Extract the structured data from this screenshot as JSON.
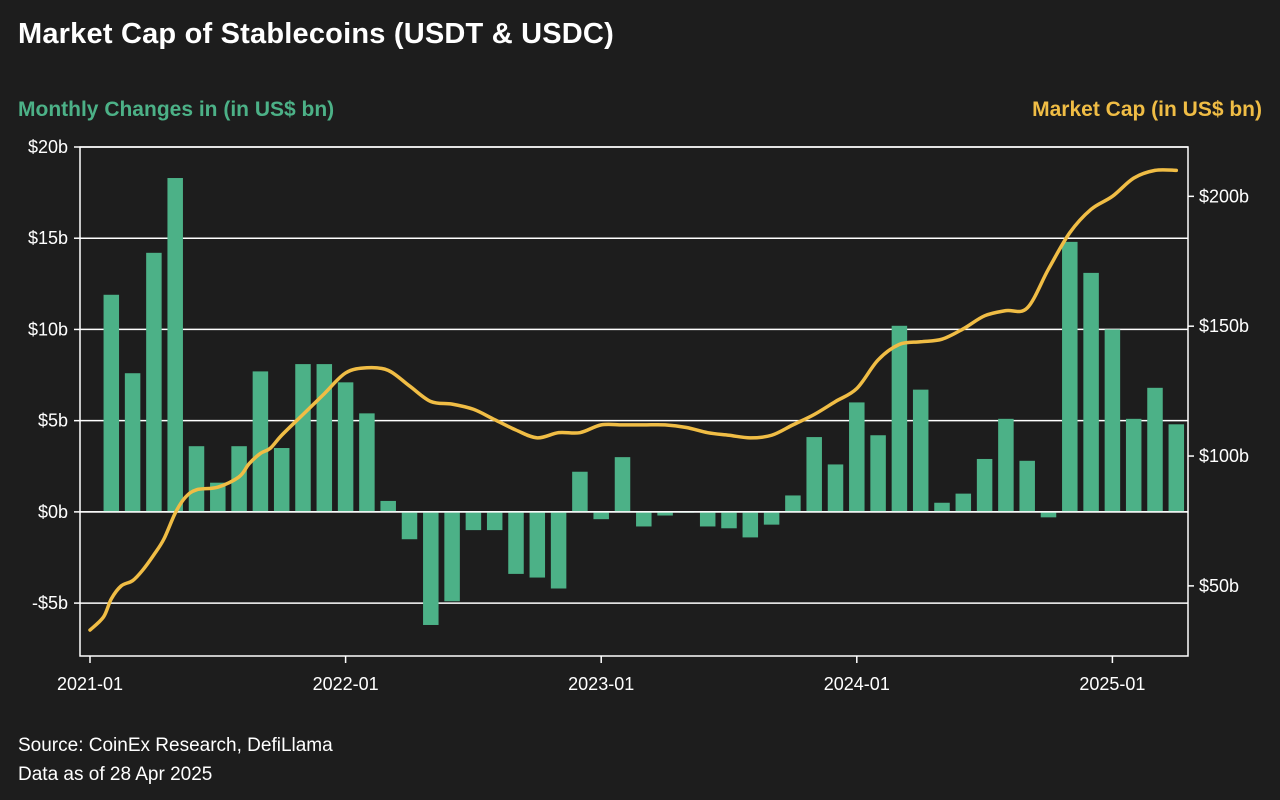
{
  "header": {
    "title": "Market Cap of Stablecoins (USDT & USDC)",
    "left_axis_title": "Monthly Changes in (in US$ bn)",
    "right_axis_title": "Market Cap (in US$ bn)"
  },
  "footer": {
    "source": "Source: CoinEx Research, DefiLlama",
    "date_note": "Data as of 28 Apr 2025"
  },
  "colors": {
    "background": "#1d1d1d",
    "bars": "#4cb187",
    "line": "#f0bd45",
    "grid": "#ffffff"
  },
  "chart_data": {
    "type": "bar",
    "grid": "horizontal",
    "x": [
      "2021-01",
      "2021-02",
      "2021-03",
      "2021-04",
      "2021-05",
      "2021-06",
      "2021-07",
      "2021-08",
      "2021-09",
      "2021-10",
      "2021-11",
      "2021-12",
      "2022-01",
      "2022-02",
      "2022-03",
      "2022-04",
      "2022-05",
      "2022-06",
      "2022-07",
      "2022-08",
      "2022-09",
      "2022-10",
      "2022-11",
      "2022-12",
      "2023-01",
      "2023-02",
      "2023-03",
      "2023-04",
      "2023-05",
      "2023-06",
      "2023-07",
      "2023-08",
      "2023-09",
      "2023-10",
      "2023-11",
      "2023-12",
      "2024-01",
      "2024-02",
      "2024-03",
      "2024-04",
      "2024-05",
      "2024-06",
      "2024-07",
      "2024-08",
      "2024-09",
      "2024-10",
      "2024-11",
      "2024-12",
      "2025-01",
      "2025-02",
      "2025-03",
      "2025-04"
    ],
    "x_tick_labels": [
      "2021-01",
      "2022-01",
      "2023-01",
      "2024-01",
      "2025-01"
    ],
    "y_left": {
      "label": "Monthly Changes in (in US$ bn)",
      "lim": [
        -7.9,
        20
      ],
      "ticks": [
        -5,
        0,
        5,
        10,
        15,
        20
      ],
      "tick_labels": [
        "-$5b",
        "$0b",
        "$5b",
        "$10b",
        "$15b",
        "$20b"
      ]
    },
    "y_right": {
      "label": "Market Cap (in US$ bn)",
      "lim": [
        23,
        219
      ],
      "ticks": [
        50,
        100,
        150,
        200
      ],
      "tick_labels": [
        "$50b",
        "$100b",
        "$150b",
        "$200b"
      ]
    },
    "series": [
      {
        "name": "Monthly Changes",
        "type": "bar",
        "axis": "left",
        "x": [
          "2021-02",
          "2021-03",
          "2021-04",
          "2021-05",
          "2021-06",
          "2021-07",
          "2021-08",
          "2021-09",
          "2021-10",
          "2021-11",
          "2021-12",
          "2022-01",
          "2022-02",
          "2022-03",
          "2022-04",
          "2022-05",
          "2022-06",
          "2022-07",
          "2022-08",
          "2022-09",
          "2022-10",
          "2022-11",
          "2022-12",
          "2023-01",
          "2023-02",
          "2023-03",
          "2023-04",
          "2023-05",
          "2023-06",
          "2023-07",
          "2023-08",
          "2023-09",
          "2023-10",
          "2023-11",
          "2023-12",
          "2024-01",
          "2024-02",
          "2024-03",
          "2024-04",
          "2024-05",
          "2024-06",
          "2024-07",
          "2024-08",
          "2024-09",
          "2024-10",
          "2024-11",
          "2024-12",
          "2025-01",
          "2025-02",
          "2025-03",
          "2025-04"
        ],
        "values": [
          11.9,
          7.6,
          14.2,
          18.3,
          3.6,
          1.6,
          3.6,
          7.7,
          3.5,
          8.1,
          8.1,
          7.1,
          5.4,
          0.6,
          -1.5,
          -6.2,
          -4.9,
          -1.0,
          -1.0,
          -3.4,
          -3.6,
          -4.2,
          2.2,
          -0.4,
          3.0,
          -0.8,
          -0.2,
          0.0,
          -0.8,
          -0.9,
          -1.4,
          -0.7,
          0.9,
          4.1,
          2.6,
          6.0,
          4.2,
          10.2,
          6.7,
          0.5,
          1.0,
          2.9,
          5.1,
          2.8,
          -0.3,
          14.8,
          13.1,
          10.0,
          5.1,
          6.8,
          4.8
        ]
      },
      {
        "name": "Market Cap",
        "type": "line",
        "axis": "right",
        "x": [
          "2021-01",
          "2021-01-20",
          "2021-02",
          "2021-02-15",
          "2021-03",
          "2021-03-15",
          "2021-04",
          "2021-04-15",
          "2021-05",
          "2021-05-15",
          "2021-06",
          "2021-07",
          "2021-08",
          "2021-08-15",
          "2021-09",
          "2021-09-15",
          "2021-10",
          "2021-11",
          "2021-12",
          "2022-01",
          "2022-02",
          "2022-03",
          "2022-04",
          "2022-05",
          "2022-06",
          "2022-07",
          "2022-08",
          "2022-09",
          "2022-10",
          "2022-11",
          "2022-12",
          "2023-01",
          "2023-02",
          "2023-03",
          "2023-04",
          "2023-05",
          "2023-06",
          "2023-07",
          "2023-08",
          "2023-09",
          "2023-10",
          "2023-11",
          "2023-12",
          "2024-01",
          "2024-02",
          "2024-03",
          "2024-04",
          "2024-05",
          "2024-06",
          "2024-07",
          "2024-08",
          "2024-09",
          "2024-10",
          "2024-11",
          "2024-12",
          "2025-01",
          "2025-02",
          "2025-03",
          "2025-04"
        ],
        "values": [
          33,
          38,
          45,
          50,
          52,
          56,
          62,
          68,
          78,
          84,
          87,
          88,
          92,
          97,
          101,
          103,
          108,
          116,
          124,
          132,
          134,
          133,
          127,
          121,
          120,
          118,
          114,
          110,
          107,
          109,
          109,
          112,
          112,
          112,
          112,
          111,
          109,
          108,
          107,
          108,
          112,
          116,
          121,
          126,
          137,
          143,
          144,
          145,
          149,
          154,
          156,
          157,
          172,
          186,
          195,
          200,
          207,
          210,
          210
        ]
      }
    ]
  }
}
